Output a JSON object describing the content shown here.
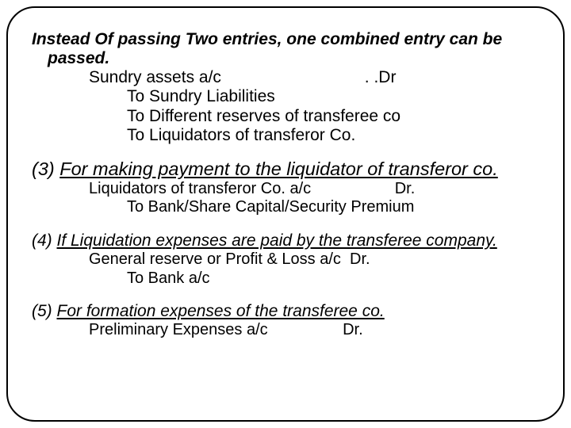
{
  "section1": {
    "heading": "Instead Of passing Two entries, one combined entry can be passed.",
    "line1": "Sundry assets a/c                               . .Dr",
    "sub1": "To Sundry Liabilities",
    "sub2": "To Different reserves of transferee co",
    "sub3": "To Liquidators of transferor Co."
  },
  "section3": {
    "heading_prefix": "(3) ",
    "heading_text": "For making payment to the liquidator of transferor co.",
    "line1": "Liquidators of transferor Co. a/c                   Dr.",
    "sub1": "To Bank/Share Capital/Security Premium"
  },
  "section4": {
    "heading_prefix": "(4) ",
    "heading_text": "If Liquidation expenses are paid by the transferee company.",
    "line1": "General reserve or Profit & Loss a/c  Dr.",
    "sub1": "To Bank a/c"
  },
  "section5": {
    "heading_prefix": "(5) ",
    "heading_text": "For formation expenses of the transferee co.",
    "line1": "Preliminary Expenses a/c                 Dr."
  }
}
